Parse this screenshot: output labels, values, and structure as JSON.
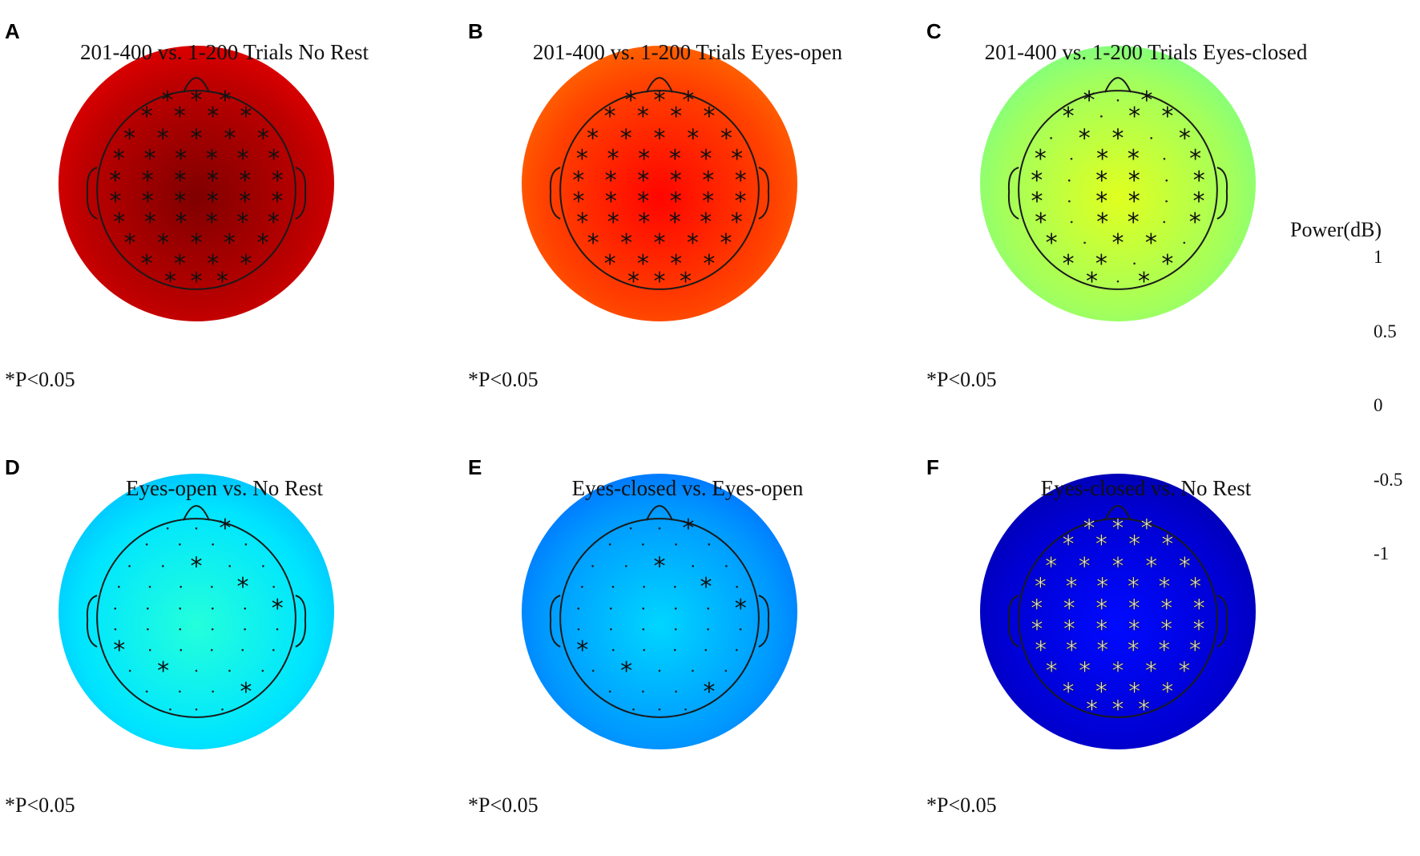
{
  "colors": {
    "outline": "#1a1a1a",
    "sig_mark_dark": "#111111",
    "sig_mark_light": "#f2f2f2"
  },
  "colormap": "jet",
  "significance_note": "*P<0.05",
  "colorbar": {
    "title": "Power(dB)",
    "min": -1,
    "max": 1,
    "ticks": [
      {
        "value": 1,
        "label": "1"
      },
      {
        "value": 0.5,
        "label": "0.5"
      },
      {
        "value": 0,
        "label": "0"
      },
      {
        "value": -0.5,
        "label": "-0.5"
      },
      {
        "value": -1,
        "label": "-1"
      }
    ]
  },
  "panels": [
    {
      "letter": "A",
      "title": "201-400 vs. 1-200 Trials No Rest",
      "power_db": 0.88,
      "sig_marks": "all",
      "mark_color": "dark"
    },
    {
      "letter": "B",
      "title": "201-400 vs. 1-200 Trials Eyes-open",
      "power_db": 0.62,
      "sig_marks": "all",
      "mark_color": "dark"
    },
    {
      "letter": "C",
      "title": "201-400 vs. 1-200 Trials Eyes-closed",
      "power_db": 0.07,
      "sig_marks": "partial",
      "mark_color": "dark"
    },
    {
      "letter": "D",
      "title": "Eyes-open vs. No Rest",
      "power_db": -0.3,
      "sig_marks": "sparse",
      "mark_color": "dark"
    },
    {
      "letter": "E",
      "title": "Eyes-closed vs. Eyes-open",
      "power_db": -0.45,
      "sig_marks": "sparse",
      "mark_color": "dark"
    },
    {
      "letter": "F",
      "title": "Eyes-closed vs. No Rest",
      "power_db": -0.85,
      "sig_marks": "all",
      "mark_color": "light"
    }
  ]
}
